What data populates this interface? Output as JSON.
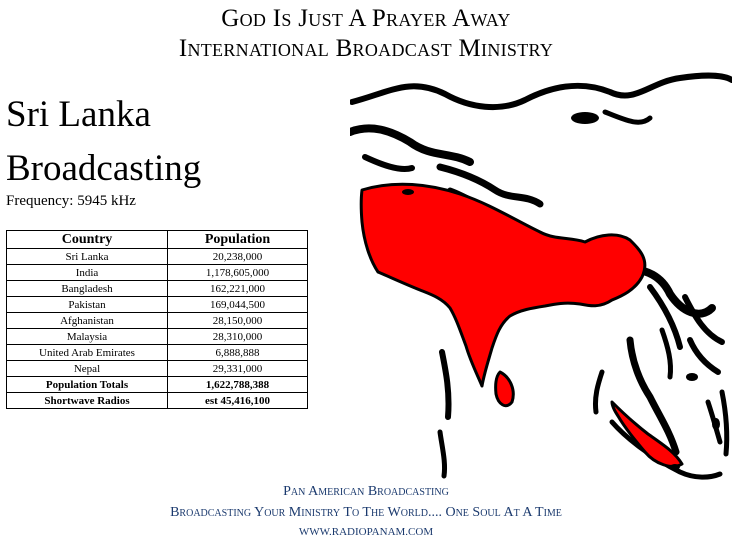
{
  "header": {
    "line1": "God Is Just A Prayer Away",
    "line2": "International Broadcast Ministry"
  },
  "station": {
    "title_line1": "Sri Lanka",
    "title_line2": "Broadcasting",
    "frequency": "Frequency: 5945 kHz"
  },
  "table": {
    "headers": [
      "Country",
      "Population"
    ],
    "rows": [
      [
        "Sri Lanka",
        "20,238,000"
      ],
      [
        "India",
        "1,178,605,000"
      ],
      [
        "Bangladesh",
        "162,221,000"
      ],
      [
        "Pakistan",
        "169,044,500"
      ],
      [
        "Afghanistan",
        "28,150,000"
      ],
      [
        "Malaysia",
        "28,310,000"
      ],
      [
        "United Arab Emirates",
        "6,888,888"
      ],
      [
        "Nepal",
        "29,331,000"
      ]
    ],
    "totals": [
      [
        "Population Totals",
        "1,622,788,388"
      ],
      [
        "Shortwave Radios",
        "est 45,416,100"
      ]
    ]
  },
  "map": {
    "highlight_color": "#ff0000",
    "outline_color": "#000000"
  },
  "footer": {
    "line1": "Pan American Broadcasting",
    "line2": "Broadcasting Your Ministry To The World.... One Soul At A Time",
    "line3": "WWW.RADIOPANAM.COM",
    "color": "#1b3a6e"
  }
}
